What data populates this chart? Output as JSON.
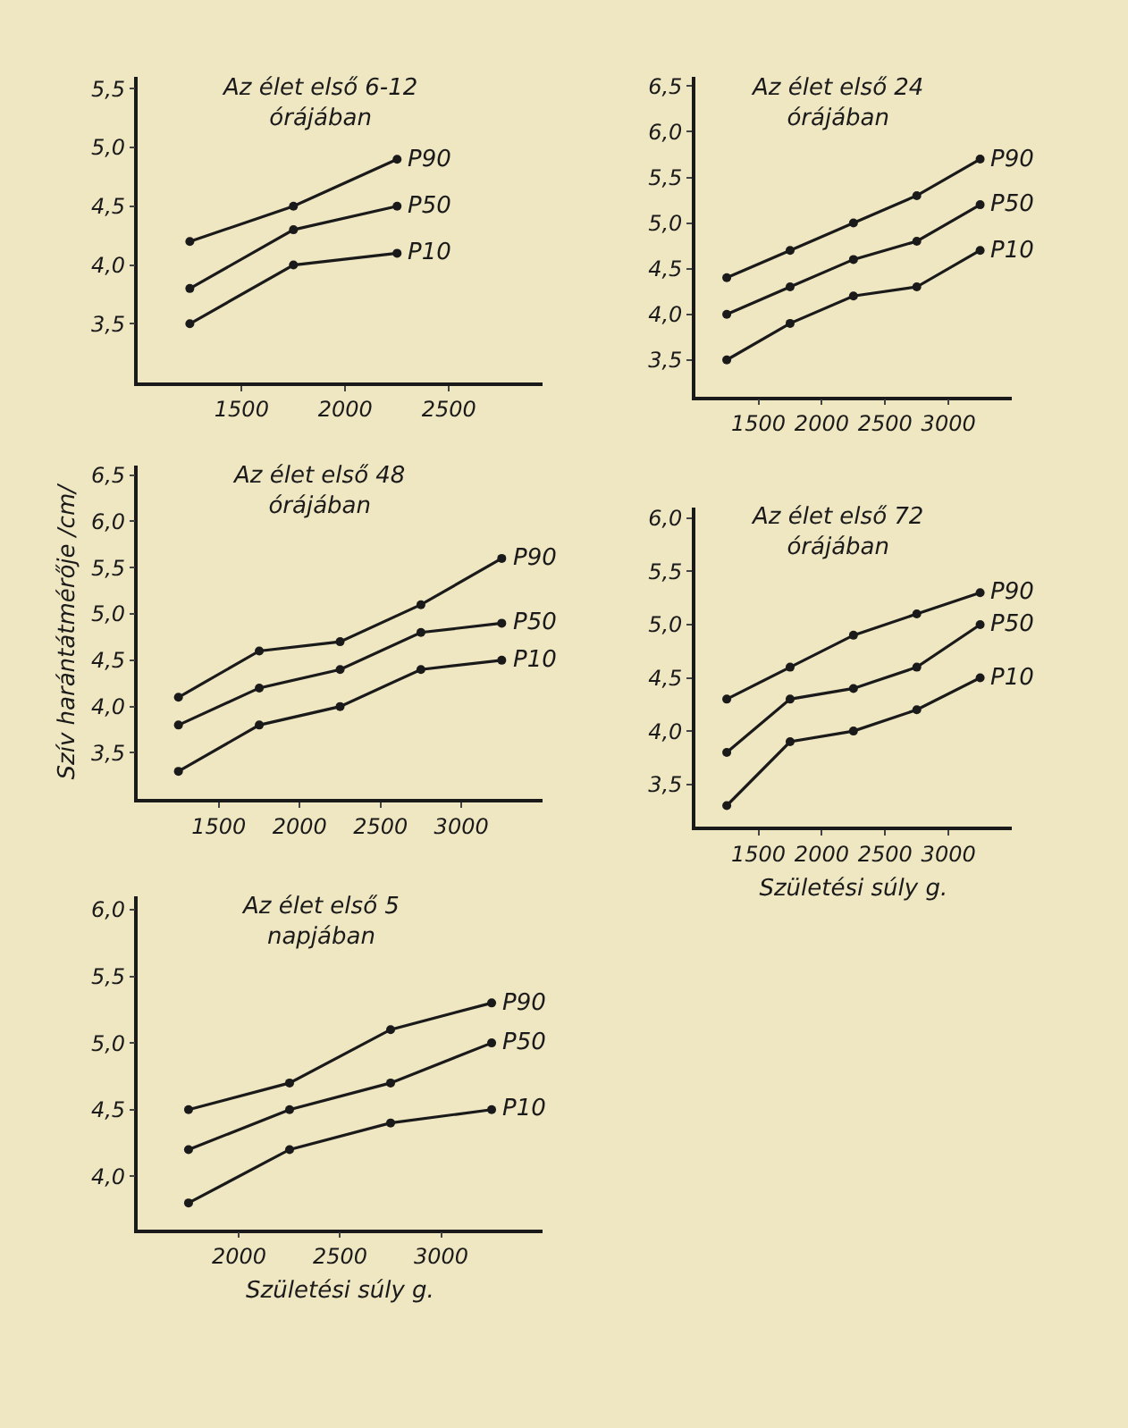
{
  "chart_data": [
    {
      "type": "line",
      "title": "Az élet első 6-12\nórájában",
      "x": [
        1250,
        1750,
        2250
      ],
      "xlim": [
        1000,
        2950
      ],
      "xticks": [
        1500,
        2000,
        2500
      ],
      "ylim": [
        3.0,
        5.6
      ],
      "yticks": [
        {
          "value": 3.5,
          "label": "3,5"
        },
        {
          "value": 4.0,
          "label": "4,0"
        },
        {
          "value": 4.5,
          "label": "4,5"
        },
        {
          "value": 5.0,
          "label": "5,0"
        },
        {
          "value": 5.5,
          "label": "5,5"
        }
      ],
      "marker": "circle",
      "legend": false,
      "grid": false,
      "series": [
        {
          "name": "P90",
          "color": "#1a1a1a",
          "values": [
            4.2,
            4.5,
            4.9
          ]
        },
        {
          "name": "P50",
          "color": "#1a1a1a",
          "values": [
            3.8,
            4.3,
            4.5
          ]
        },
        {
          "name": "P10",
          "color": "#1a1a1a",
          "values": [
            3.5,
            4.0,
            4.1
          ]
        }
      ]
    },
    {
      "type": "line",
      "title": "Az élet első 24\nórájában",
      "x": [
        1250,
        1750,
        2250,
        2750,
        3250
      ],
      "xlim": [
        1000,
        3500
      ],
      "xticks": [
        1500,
        2000,
        2500,
        3000
      ],
      "ylim": [
        3.1,
        6.6
      ],
      "yticks": [
        {
          "value": 3.5,
          "label": "3,5"
        },
        {
          "value": 4.0,
          "label": "4,0"
        },
        {
          "value": 4.5,
          "label": "4,5"
        },
        {
          "value": 5.0,
          "label": "5,0"
        },
        {
          "value": 5.5,
          "label": "5,5"
        },
        {
          "value": 6.0,
          "label": "6,0"
        },
        {
          "value": 6.5,
          "label": "6,5"
        }
      ],
      "marker": "circle",
      "legend": false,
      "grid": false,
      "series": [
        {
          "name": "P90",
          "color": "#1a1a1a",
          "values": [
            4.4,
            4.7,
            5.0,
            5.3,
            5.7
          ]
        },
        {
          "name": "P50",
          "color": "#1a1a1a",
          "values": [
            4.0,
            4.3,
            4.6,
            4.8,
            5.2
          ]
        },
        {
          "name": "P10",
          "color": "#1a1a1a",
          "values": [
            3.5,
            3.9,
            4.2,
            4.3,
            4.7
          ]
        }
      ]
    },
    {
      "type": "line",
      "title": "Az élet első 48\nórájában",
      "ylabel": "Szív harántátmérője /cm/",
      "x": [
        1250,
        1750,
        2250,
        2750,
        3250
      ],
      "xlim": [
        1000,
        3500
      ],
      "xticks": [
        1500,
        2000,
        2500,
        3000
      ],
      "ylim": [
        3.0,
        6.6
      ],
      "yticks": [
        {
          "value": 3.5,
          "label": "3,5"
        },
        {
          "value": 4.0,
          "label": "4,0"
        },
        {
          "value": 4.5,
          "label": "4,5"
        },
        {
          "value": 5.0,
          "label": "5,0"
        },
        {
          "value": 5.5,
          "label": "5,5"
        },
        {
          "value": 6.0,
          "label": "6,0"
        },
        {
          "value": 6.5,
          "label": "6,5"
        }
      ],
      "marker": "circle",
      "legend": false,
      "grid": false,
      "series": [
        {
          "name": "P90",
          "color": "#1a1a1a",
          "values": [
            4.1,
            4.6,
            4.7,
            5.1,
            5.6
          ]
        },
        {
          "name": "P50",
          "color": "#1a1a1a",
          "values": [
            3.8,
            4.2,
            4.4,
            4.8,
            4.9
          ]
        },
        {
          "name": "P10",
          "color": "#1a1a1a",
          "values": [
            3.3,
            3.8,
            4.0,
            4.4,
            4.5
          ]
        }
      ]
    },
    {
      "type": "line",
      "title": "Az élet első 72\nórájában",
      "xlabel": "Születési súly g.",
      "x": [
        1250,
        1750,
        2250,
        2750,
        3250
      ],
      "xlim": [
        1000,
        3500
      ],
      "xticks": [
        1500,
        2000,
        2500,
        3000
      ],
      "ylim": [
        3.1,
        6.1
      ],
      "yticks": [
        {
          "value": 3.5,
          "label": "3,5"
        },
        {
          "value": 4.0,
          "label": "4,0"
        },
        {
          "value": 4.5,
          "label": "4,5"
        },
        {
          "value": 5.0,
          "label": "5,0"
        },
        {
          "value": 5.5,
          "label": "5,5"
        },
        {
          "value": 6.0,
          "label": "6,0"
        }
      ],
      "marker": "circle",
      "legend": false,
      "grid": false,
      "series": [
        {
          "name": "P90",
          "color": "#1a1a1a",
          "values": [
            4.3,
            4.6,
            4.9,
            5.1,
            5.3
          ]
        },
        {
          "name": "P50",
          "color": "#1a1a1a",
          "values": [
            3.8,
            4.3,
            4.4,
            4.6,
            5.0
          ]
        },
        {
          "name": "P10",
          "color": "#1a1a1a",
          "values": [
            3.3,
            3.9,
            4.0,
            4.2,
            4.5
          ]
        }
      ]
    },
    {
      "type": "line",
      "title": "Az élet első 5\nnapjában",
      "xlabel": "Születési súly g.",
      "x": [
        1750,
        2250,
        2750,
        3250
      ],
      "xlim": [
        1500,
        3500
      ],
      "xticks": [
        2000,
        2500,
        3000
      ],
      "ylim": [
        3.6,
        6.1
      ],
      "yticks": [
        {
          "value": 4.0,
          "label": "4,0"
        },
        {
          "value": 4.5,
          "label": "4,5"
        },
        {
          "value": 5.0,
          "label": "5,0"
        },
        {
          "value": 5.5,
          "label": "5,5"
        },
        {
          "value": 6.0,
          "label": "6,0"
        }
      ],
      "marker": "circle",
      "legend": false,
      "grid": false,
      "series": [
        {
          "name": "P90",
          "color": "#1a1a1a",
          "values": [
            4.5,
            4.7,
            5.1,
            5.3
          ]
        },
        {
          "name": "P50",
          "color": "#1a1a1a",
          "values": [
            4.2,
            4.5,
            4.7,
            5.0
          ]
        },
        {
          "name": "P10",
          "color": "#1a1a1a",
          "values": [
            3.8,
            4.2,
            4.4,
            4.5
          ]
        }
      ]
    }
  ]
}
